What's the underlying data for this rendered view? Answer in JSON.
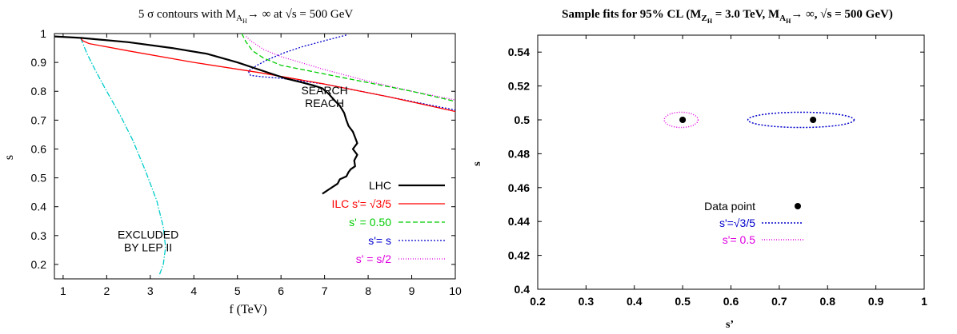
{
  "chart_data": [
    {
      "type": "line",
      "title_parts": [
        "5 ",
        "σ",
        " contours with M",
        "A",
        "H",
        "→ ∞ at √s = 500 GeV"
      ],
      "xlabel": "f (TeV)",
      "ylabel": "s",
      "xlim": [
        0.8,
        10
      ],
      "ylim": [
        0.15,
        1.0
      ],
      "xticks": [
        "1",
        "2",
        "3",
        "4",
        "5",
        "6",
        "7",
        "8",
        "9",
        "10"
      ],
      "yticks": [
        "0.2",
        "0.3",
        "0.4",
        "0.5",
        "0.6",
        "0.7",
        "0.8",
        "0.9",
        "1"
      ],
      "grid": false,
      "legend": "bottom-right",
      "annotations": [
        {
          "text": "SEARCH",
          "x": 7.0,
          "y": 0.79
        },
        {
          "text": "REACH",
          "x": 7.0,
          "y": 0.745
        },
        {
          "text": "EXCLUDED",
          "x": 2.95,
          "y": 0.29
        },
        {
          "text": "BY LEP II",
          "x": 2.95,
          "y": 0.245
        }
      ],
      "series": [
        {
          "name": "LHC",
          "color": "#000000",
          "dash": "solid",
          "width": 2.2,
          "x": [
            0.8,
            1.4,
            2.5,
            3.5,
            4.3,
            5.0,
            5.6,
            6.1,
            6.5,
            6.75,
            6.95,
            7.1,
            7.25,
            7.35,
            7.45,
            7.5,
            7.55,
            7.65,
            7.7,
            7.75,
            7.65,
            7.75,
            7.68,
            7.7,
            7.6,
            7.55,
            7.5,
            7.35,
            7.3,
            7.2,
            7.1,
            7.05,
            6.95
          ],
          "y": [
            0.99,
            0.985,
            0.97,
            0.95,
            0.93,
            0.9,
            0.87,
            0.845,
            0.83,
            0.82,
            0.81,
            0.79,
            0.765,
            0.75,
            0.725,
            0.7,
            0.68,
            0.66,
            0.64,
            0.62,
            0.6,
            0.58,
            0.56,
            0.54,
            0.53,
            0.52,
            0.505,
            0.495,
            0.48,
            0.47,
            0.46,
            0.455,
            0.445
          ]
        },
        {
          "name": "ILC s'= √3/5",
          "color": "#ff0000",
          "dash": "solid",
          "width": 1.3,
          "x": [
            1.4,
            1.45,
            1.6,
            2.5,
            4.0,
            5.5,
            7.0,
            8.5,
            10.0
          ],
          "y": [
            0.985,
            0.975,
            0.965,
            0.94,
            0.9,
            0.865,
            0.825,
            0.78,
            0.73
          ]
        },
        {
          "name": "s' = 0.50",
          "color": "#00cc00",
          "dash": "6,3",
          "width": 1.3,
          "x": [
            5.1,
            5.2,
            5.35,
            5.6,
            6.0,
            7.0,
            8.0,
            9.0,
            10.0
          ],
          "y": [
            1.0,
            0.97,
            0.94,
            0.915,
            0.89,
            0.86,
            0.83,
            0.8,
            0.765
          ]
        },
        {
          "name": "s'= s",
          "color": "#0000cc",
          "dash": "2,2",
          "width": 1.3,
          "x": [
            7.5,
            7.0,
            6.5,
            6.1,
            5.7,
            5.45,
            5.25,
            5.3,
            5.6,
            6.0,
            6.5,
            7.0,
            8.0,
            9.0,
            10.0
          ],
          "y": [
            0.995,
            0.975,
            0.955,
            0.935,
            0.91,
            0.89,
            0.87,
            0.855,
            0.85,
            0.845,
            0.835,
            0.825,
            0.795,
            0.765,
            0.735
          ]
        },
        {
          "name": "s' = s/2",
          "color": "#e000e0",
          "dash": "1,2",
          "width": 1.3,
          "x": [
            5.2,
            5.3,
            5.6,
            6.0,
            7.0,
            8.0,
            9.0,
            10.0
          ],
          "y": [
            0.99,
            0.975,
            0.945,
            0.92,
            0.875,
            0.835,
            0.8,
            0.77
          ]
        },
        {
          "name": "",
          "color": "#00cccc",
          "dash": "7,2,1.5,2",
          "width": 1.3,
          "x": [
            1.4,
            1.55,
            1.75,
            2.0,
            2.3,
            2.6,
            2.9,
            3.15,
            3.3,
            3.35,
            3.3,
            3.2
          ],
          "y": [
            0.985,
            0.93,
            0.87,
            0.8,
            0.72,
            0.63,
            0.52,
            0.42,
            0.33,
            0.26,
            0.2,
            0.16
          ]
        }
      ]
    },
    {
      "type": "scatter",
      "title_parts": [
        "Sample fits for 95% CL (M",
        "Z",
        "H",
        " = 3.0 TeV, M",
        "A",
        "H",
        "→ ∞, √s = 500 GeV)"
      ],
      "xlabel": "s’",
      "ylabel": "s",
      "xlim": [
        0.2,
        1.0
      ],
      "ylim": [
        0.4,
        0.55
      ],
      "xticks": [
        "0.2",
        "0.3",
        "0.4",
        "0.5",
        "0.6",
        "0.7",
        "0.8",
        "0.9",
        "1"
      ],
      "yticks": [
        "0.4",
        "0.42",
        "0.44",
        "0.46",
        "0.48",
        "0.5",
        "0.52",
        "0.54"
      ],
      "grid": false,
      "legend": "bottom-center",
      "points": [
        {
          "name": "Data point",
          "x": 0.5,
          "y": 0.5
        },
        {
          "name": "Data point",
          "x": 0.77,
          "y": 0.5
        }
      ],
      "contours": [
        {
          "name": "s'=√3/5",
          "color": "#0000cc",
          "dash": "2,2",
          "cx": 0.745,
          "cy": 0.5,
          "rx": 0.11,
          "ry": 0.0045
        },
        {
          "name": "s'= 0.5",
          "color": "#e000e0",
          "dash": "1,2",
          "cx": 0.497,
          "cy": 0.5,
          "rx": 0.035,
          "ry": 0.0045
        }
      ],
      "legend_entries": [
        {
          "text": "Data point",
          "color": "#000000",
          "marker": "dot"
        },
        {
          "text": "s'=√3/5",
          "color": "#0000cc",
          "marker": "line"
        },
        {
          "text": "s'= 0.5",
          "color": "#e000e0",
          "marker": "line"
        }
      ]
    }
  ]
}
